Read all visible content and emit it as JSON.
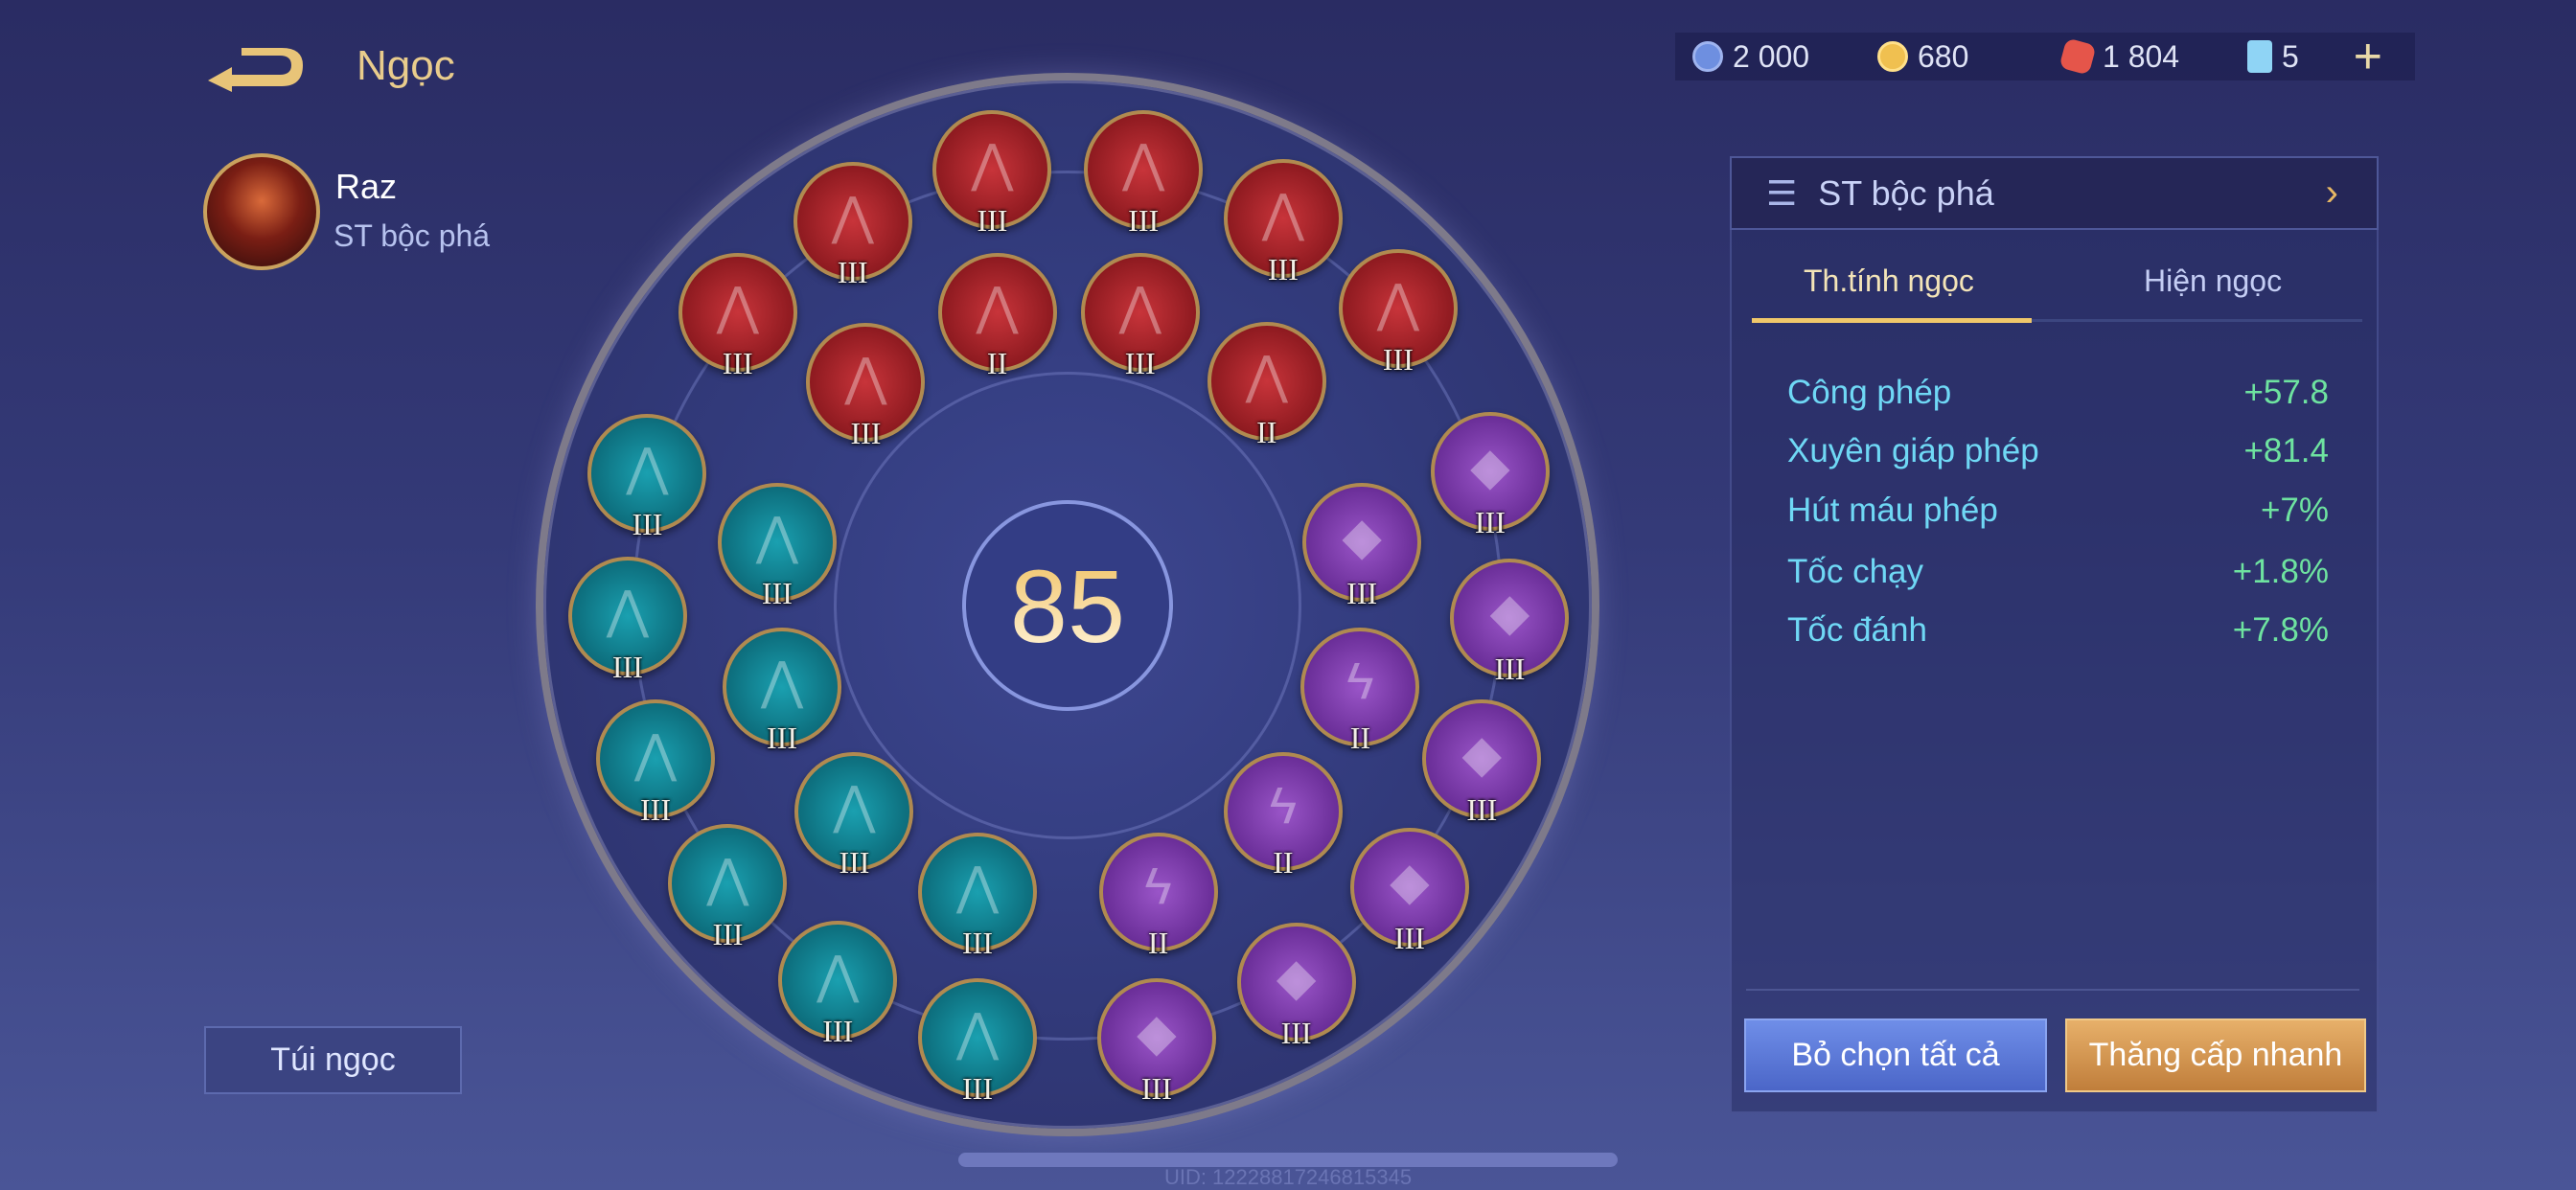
{
  "header": {
    "title": "Ngọc",
    "back_icon": "back-arrow-icon"
  },
  "hero": {
    "name": "Raz",
    "build": "ST bộc phá"
  },
  "currency": [
    {
      "icon": "blue-coin-icon",
      "value": "2 000",
      "color": "#6e8fe0"
    },
    {
      "icon": "gold-coin-icon",
      "value": "680",
      "color": "#f0c050"
    },
    {
      "icon": "red-gem-icon",
      "value": "1 804",
      "color": "#e5554a"
    },
    {
      "icon": "card-icon",
      "value": "5",
      "color": "#8fd4f5"
    }
  ],
  "add_label": "+",
  "wheel": {
    "total_level": "85"
  },
  "gems": {
    "red": [
      {
        "level": "III"
      },
      {
        "level": "III"
      },
      {
        "level": "III"
      },
      {
        "level": "III"
      },
      {
        "level": "III"
      },
      {
        "level": "II"
      },
      {
        "level": "III"
      },
      {
        "level": "III"
      },
      {
        "level": "III"
      },
      {
        "level": "II"
      }
    ],
    "teal": [
      {
        "level": "III"
      },
      {
        "level": "III"
      },
      {
        "level": "III"
      },
      {
        "level": "III"
      },
      {
        "level": "III"
      },
      {
        "level": "III"
      },
      {
        "level": "III"
      },
      {
        "level": "III"
      },
      {
        "level": "III"
      },
      {
        "level": "III"
      }
    ],
    "purple": [
      {
        "level": "III",
        "icon": "drop"
      },
      {
        "level": "III",
        "icon": "drop"
      },
      {
        "level": "III",
        "icon": "drop"
      },
      {
        "level": "II",
        "icon": "lightning"
      },
      {
        "level": "III",
        "icon": "drop"
      },
      {
        "level": "II",
        "icon": "lightning"
      },
      {
        "level": "III",
        "icon": "drop"
      },
      {
        "level": "II",
        "icon": "lightning"
      },
      {
        "level": "III",
        "icon": "drop"
      },
      {
        "level": "III",
        "icon": "drop"
      }
    ]
  },
  "bag_button": "Túi ngọc",
  "panel": {
    "preset": "ST bộc phá",
    "tabs": [
      {
        "label": "Th.tính ngọc",
        "active": true
      },
      {
        "label": "Hiện ngọc",
        "active": false
      }
    ],
    "stats": [
      {
        "label": "Công phép",
        "value": "+57.8"
      },
      {
        "label": "Xuyên giáp phép",
        "value": "+81.4"
      },
      {
        "label": "Hút máu phép",
        "value": "+7%"
      },
      {
        "label": "Tốc chạy",
        "value": "+1.8%"
      },
      {
        "label": "Tốc đánh",
        "value": "+7.8%"
      }
    ],
    "deselect_all": "Bỏ chọn tất cả",
    "quick_upgrade": "Thăng cấp nhanh"
  },
  "uid": "UID: 12228817246815345"
}
